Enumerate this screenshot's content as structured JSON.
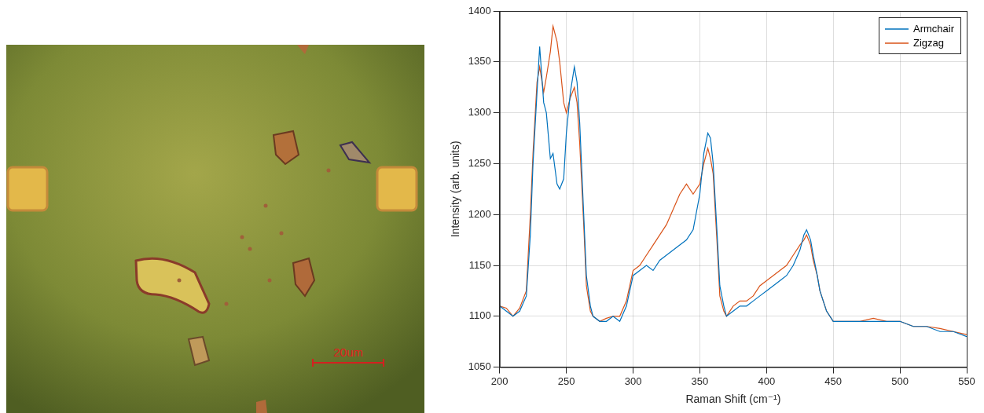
{
  "micrograph": {
    "scale_bar_label": "20um"
  },
  "chart_data": {
    "type": "line",
    "x_label": "Raman Shift (cm⁻¹)",
    "y_label": "Intensity (arb. units)",
    "x": [
      200,
      205,
      210,
      215,
      220,
      223,
      225,
      228,
      230,
      233,
      235,
      238,
      240,
      243,
      245,
      248,
      250,
      253,
      256,
      258,
      260,
      263,
      265,
      268,
      270,
      275,
      280,
      285,
      290,
      295,
      300,
      305,
      310,
      315,
      320,
      325,
      330,
      335,
      340,
      345,
      350,
      353,
      356,
      358,
      360,
      363,
      365,
      368,
      370,
      375,
      380,
      385,
      390,
      395,
      400,
      405,
      410,
      415,
      420,
      425,
      428,
      430,
      433,
      435,
      438,
      440,
      445,
      450,
      460,
      470,
      480,
      490,
      500,
      510,
      520,
      530,
      540,
      550
    ],
    "series": [
      {
        "name": "Armchair",
        "color": "#0072bd",
        "values": [
          1110,
          1105,
          1100,
          1105,
          1120,
          1180,
          1250,
          1320,
          1365,
          1310,
          1300,
          1255,
          1260,
          1230,
          1225,
          1235,
          1280,
          1320,
          1345,
          1330,
          1290,
          1200,
          1140,
          1110,
          1100,
          1095,
          1095,
          1100,
          1095,
          1110,
          1140,
          1145,
          1150,
          1145,
          1155,
          1160,
          1165,
          1170,
          1175,
          1185,
          1220,
          1260,
          1280,
          1275,
          1250,
          1180,
          1130,
          1110,
          1100,
          1105,
          1110,
          1110,
          1115,
          1120,
          1125,
          1130,
          1135,
          1140,
          1150,
          1165,
          1180,
          1185,
          1175,
          1160,
          1140,
          1125,
          1105,
          1095,
          1095,
          1095,
          1095,
          1095,
          1095,
          1090,
          1090,
          1085,
          1085,
          1080
        ]
      },
      {
        "name": "Zigzag",
        "color": "#d95319",
        "values": [
          1110,
          1108,
          1100,
          1108,
          1125,
          1200,
          1260,
          1330,
          1345,
          1320,
          1335,
          1360,
          1385,
          1370,
          1350,
          1310,
          1300,
          1315,
          1325,
          1310,
          1270,
          1190,
          1130,
          1105,
          1100,
          1095,
          1098,
          1100,
          1100,
          1115,
          1145,
          1150,
          1160,
          1170,
          1180,
          1190,
          1205,
          1220,
          1230,
          1220,
          1230,
          1250,
          1265,
          1255,
          1240,
          1170,
          1120,
          1105,
          1100,
          1110,
          1115,
          1115,
          1120,
          1130,
          1135,
          1140,
          1145,
          1150,
          1160,
          1170,
          1175,
          1180,
          1170,
          1155,
          1140,
          1125,
          1105,
          1095,
          1095,
          1095,
          1098,
          1095,
          1095,
          1090,
          1090,
          1088,
          1085,
          1082
        ]
      }
    ],
    "xlim": [
      200,
      550
    ],
    "xticks": [
      200,
      250,
      300,
      350,
      400,
      450,
      500,
      550
    ],
    "ylim": [
      1050,
      1400
    ],
    "yticks": [
      1050,
      1100,
      1150,
      1200,
      1250,
      1300,
      1350,
      1400
    ],
    "grid": true,
    "legend": "upper right"
  }
}
